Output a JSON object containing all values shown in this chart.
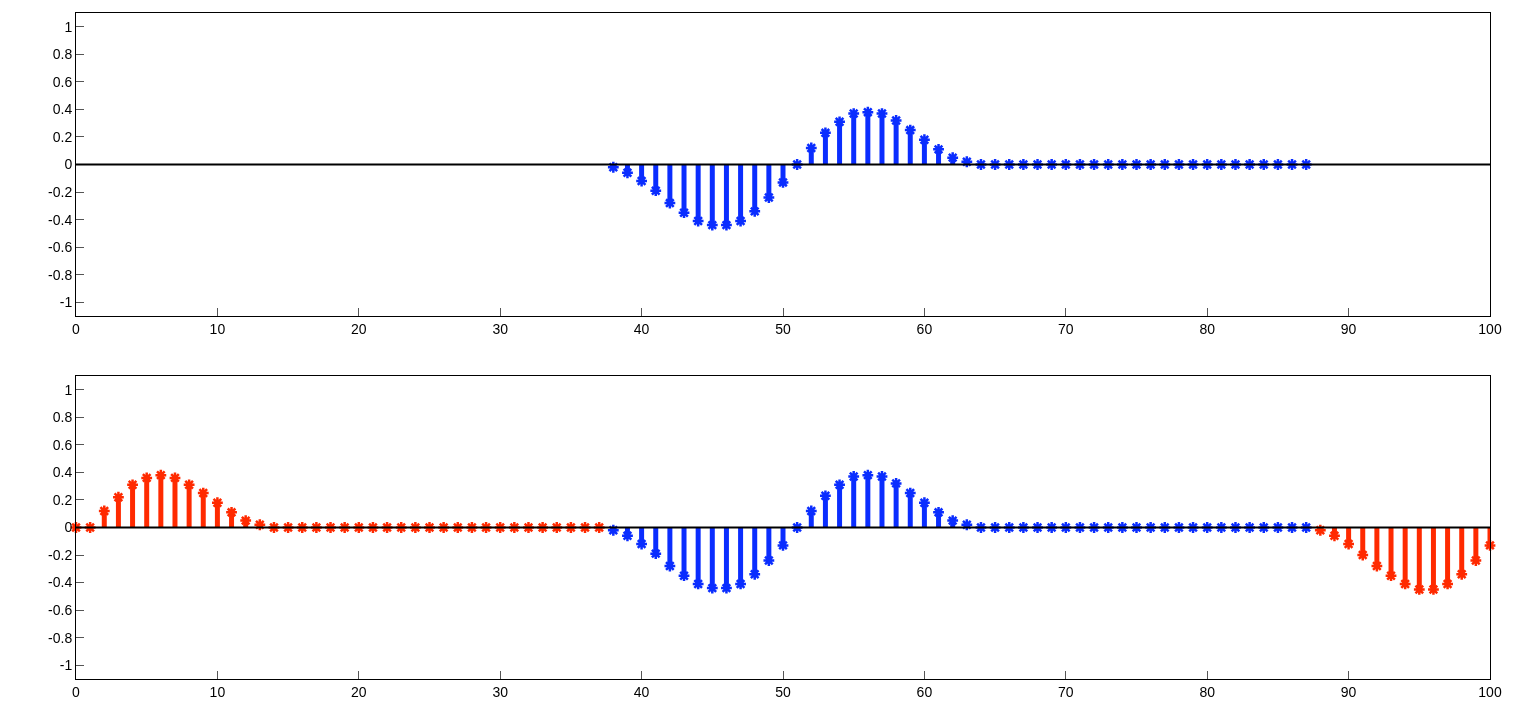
{
  "chart_data": [
    {
      "type": "lollipop",
      "xlim": [
        0,
        100
      ],
      "xticks": [
        0,
        10,
        20,
        30,
        40,
        50,
        60,
        70,
        80,
        90,
        100
      ],
      "ylim": [
        -1.1,
        1.1
      ],
      "yticks": [
        -1,
        -0.8,
        -0.6,
        -0.4,
        -0.2,
        0,
        0.2,
        0.4,
        0.6,
        0.8,
        1
      ],
      "marker": "cross",
      "ref_lines": [
        {
          "axis": "y",
          "value": 0,
          "color": "#000000"
        }
      ],
      "series": [
        {
          "color": "#0a2dff",
          "x": [
            38,
            39,
            40,
            41,
            42,
            43,
            44,
            45,
            46,
            47,
            48,
            49,
            50,
            51,
            52,
            53,
            54,
            55,
            56,
            57,
            58,
            59,
            60,
            61,
            62,
            63,
            64,
            65,
            66,
            67,
            68,
            69,
            70,
            71,
            72,
            73,
            74,
            75,
            76,
            77,
            78,
            79,
            80,
            81,
            82,
            83,
            84,
            85,
            86,
            87
          ],
          "values": [
            -0.02,
            -0.06,
            -0.12,
            -0.19,
            -0.28,
            -0.35,
            -0.41,
            -0.44,
            -0.44,
            -0.41,
            -0.34,
            -0.24,
            -0.13,
            0,
            0.12,
            0.23,
            0.31,
            0.37,
            0.38,
            0.37,
            0.32,
            0.25,
            0.18,
            0.11,
            0.05,
            0.02,
            0,
            0,
            0,
            0,
            0,
            0,
            0,
            0,
            0,
            0,
            0,
            0,
            0,
            0,
            0,
            0,
            0,
            0,
            0,
            0,
            0,
            0,
            0,
            0
          ]
        }
      ]
    },
    {
      "type": "lollipop",
      "xlim": [
        0,
        100
      ],
      "xticks": [
        0,
        10,
        20,
        30,
        40,
        50,
        60,
        70,
        80,
        90,
        100
      ],
      "ylim": [
        -1.1,
        1.1
      ],
      "yticks": [
        -1,
        -0.8,
        -0.6,
        -0.4,
        -0.2,
        0,
        0.2,
        0.4,
        0.6,
        0.8,
        1
      ],
      "marker": "cross",
      "ref_lines": [
        {
          "axis": "y",
          "value": 0,
          "color": "#000000"
        }
      ],
      "series": [
        {
          "color": "#ff2a00",
          "x": [
            0,
            1,
            2,
            3,
            4,
            5,
            6,
            7,
            8,
            9,
            10,
            11,
            12,
            13,
            14,
            15,
            16,
            17,
            18,
            19,
            20,
            21,
            22,
            23,
            24,
            25,
            26,
            27,
            28,
            29,
            30,
            31,
            32,
            33,
            34,
            35,
            36,
            37,
            88,
            89,
            90,
            91,
            92,
            93,
            94,
            95,
            96,
            97,
            98,
            99,
            100
          ],
          "values": [
            0,
            0,
            0.12,
            0.22,
            0.31,
            0.36,
            0.38,
            0.36,
            0.31,
            0.25,
            0.18,
            0.11,
            0.05,
            0.02,
            0,
            0,
            0,
            0,
            0,
            0,
            0,
            0,
            0,
            0,
            0,
            0,
            0,
            0,
            0,
            0,
            0,
            0,
            0,
            0,
            0,
            0,
            0,
            0,
            -0.02,
            -0.06,
            -0.12,
            -0.2,
            -0.28,
            -0.35,
            -0.41,
            -0.45,
            -0.45,
            -0.41,
            -0.34,
            -0.24,
            -0.13
          ]
        },
        {
          "color": "#0a2dff",
          "x": [
            38,
            39,
            40,
            41,
            42,
            43,
            44,
            45,
            46,
            47,
            48,
            49,
            50,
            51,
            52,
            53,
            54,
            55,
            56,
            57,
            58,
            59,
            60,
            61,
            62,
            63,
            64,
            65,
            66,
            67,
            68,
            69,
            70,
            71,
            72,
            73,
            74,
            75,
            76,
            77,
            78,
            79,
            80,
            81,
            82,
            83,
            84,
            85,
            86,
            87
          ],
          "values": [
            -0.02,
            -0.06,
            -0.12,
            -0.19,
            -0.28,
            -0.35,
            -0.41,
            -0.44,
            -0.44,
            -0.41,
            -0.34,
            -0.24,
            -0.13,
            0,
            0.12,
            0.23,
            0.31,
            0.37,
            0.38,
            0.37,
            0.32,
            0.25,
            0.18,
            0.11,
            0.05,
            0.02,
            0,
            0,
            0,
            0,
            0,
            0,
            0,
            0,
            0,
            0,
            0,
            0,
            0,
            0,
            0,
            0,
            0,
            0,
            0,
            0,
            0,
            0,
            0,
            0
          ]
        }
      ]
    }
  ]
}
